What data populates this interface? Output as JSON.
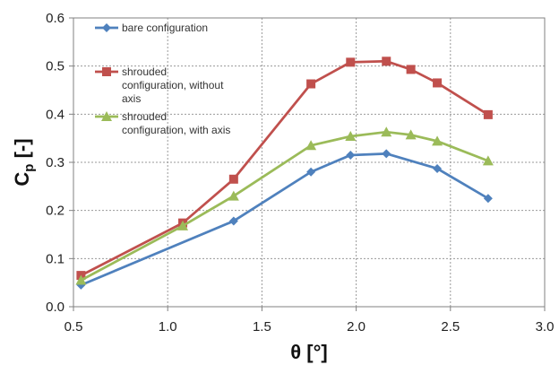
{
  "chart_data": {
    "type": "line",
    "xlabel": "θ [°]",
    "ylabel_main": "C",
    "ylabel_sub": "p",
    "ylabel_suffix": " [-]",
    "xlim": [
      0.5,
      3.0
    ],
    "ylim": [
      0.0,
      0.6
    ],
    "xticks": [
      "0.5",
      "1.0",
      "1.5",
      "2.0",
      "2.5",
      "3.0"
    ],
    "yticks": [
      "0.0",
      "0.1",
      "0.2",
      "0.3",
      "0.4",
      "0.5",
      "0.6"
    ],
    "grid": true,
    "legend_position": "top-left",
    "series": [
      {
        "name": "bare configuration",
        "name_lines": [
          "bare configuration"
        ],
        "color": "#4F81BD",
        "marker": "diamond",
        "x": [
          0.54,
          1.35,
          1.76,
          1.97,
          2.16,
          2.43,
          2.7
        ],
        "y": [
          0.045,
          0.178,
          0.28,
          0.315,
          0.318,
          0.287,
          0.225
        ]
      },
      {
        "name": "shrouded configuration, without axis",
        "name_lines": [
          "shrouded",
          "configuration, without",
          "axis"
        ],
        "color": "#C0504D",
        "marker": "square",
        "x": [
          0.54,
          1.08,
          1.35,
          1.76,
          1.97,
          2.16,
          2.29,
          2.43,
          2.7
        ],
        "y": [
          0.065,
          0.174,
          0.265,
          0.463,
          0.508,
          0.51,
          0.493,
          0.465,
          0.399
        ]
      },
      {
        "name": "shrouded configuration, with axis",
        "name_lines": [
          "shrouded",
          "configuration, with axis"
        ],
        "color": "#9BBB59",
        "marker": "triangle",
        "x": [
          0.54,
          1.08,
          1.35,
          1.76,
          1.97,
          2.16,
          2.29,
          2.43,
          2.7
        ],
        "y": [
          0.055,
          0.168,
          0.23,
          0.335,
          0.354,
          0.363,
          0.357,
          0.344,
          0.303
        ]
      }
    ]
  }
}
